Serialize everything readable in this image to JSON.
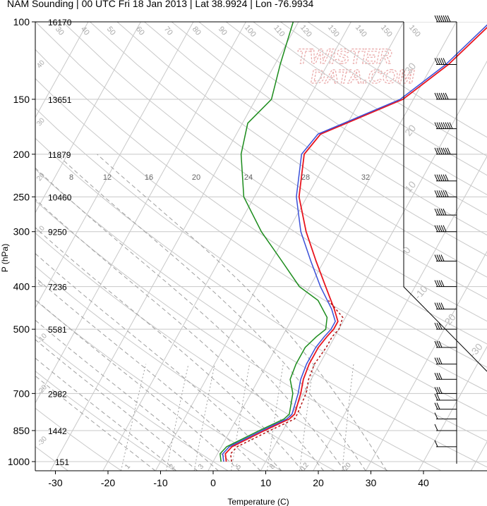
{
  "title": "NAM Sounding | 00 UTC Fri 18 Jan 2013 | Lat 38.9924 | Lon -76.9934",
  "watermark": [
    "TWISTER",
    "DATA.COM"
  ],
  "colors": {
    "temperature": "#e8141e",
    "temperature_alt": "#3a4fd8",
    "dewpoint": "#1c8c1c",
    "dewpoint_dotted": "#b01010",
    "grid": "#c8c8c8",
    "dashed": "#a0a0a0"
  },
  "chart_data": {
    "type": "line",
    "title": "NAM Sounding | 00 UTC Fri 18 Jan 2013 | Lat 38.9924 | Lon -76.9934",
    "xlabel": "Temperature (C)",
    "ylabel": "P (hPa)",
    "x_ticks": [
      "-30",
      "-20",
      "-10",
      "0",
      "10",
      "20",
      "30",
      "40"
    ],
    "y_ticks": [
      "100",
      "150",
      "200",
      "250",
      "300",
      "400",
      "500",
      "700",
      "850",
      "1000"
    ],
    "y_scale": "log",
    "xlim": [
      -35,
      52
    ],
    "ylim": [
      1050,
      100
    ],
    "heights_m": [
      {
        "p": 100,
        "z": "16170"
      },
      {
        "p": 150,
        "z": "13651"
      },
      {
        "p": 200,
        "z": "11879"
      },
      {
        "p": 250,
        "z": "10460"
      },
      {
        "p": 300,
        "z": "9250"
      },
      {
        "p": 400,
        "z": "7236"
      },
      {
        "p": 500,
        "z": "5581"
      },
      {
        "p": 700,
        "z": "2982"
      },
      {
        "p": 850,
        "z": "1442"
      },
      {
        "p": 1000,
        "z": "151"
      }
    ],
    "skew_labels": [
      "30",
      "40",
      "50",
      "60",
      "70",
      "80",
      "90",
      "100",
      "110",
      "120",
      "130",
      "140",
      "150",
      "160"
    ],
    "mixing_ratio_labels": [
      "8",
      "12",
      "16",
      "20",
      "24",
      "28",
      "32"
    ],
    "bottom_labels": [
      "1",
      "2",
      "3",
      "5",
      "8",
      "12",
      "20"
    ],
    "right_labels": [
      "30",
      "20",
      "10",
      "0",
      "-10",
      "-20",
      "-30"
    ],
    "left_labels": [
      "40",
      "30",
      "20",
      "10",
      "0",
      "-10",
      "-20",
      "-30"
    ],
    "series": [
      {
        "kind": "temperature",
        "points": [
          [
            2.5,
            1000
          ],
          [
            1.5,
            960
          ],
          [
            2.0,
            925
          ],
          [
            6.5,
            850
          ],
          [
            10.0,
            800
          ],
          [
            10.5,
            780
          ],
          [
            9.5,
            700
          ],
          [
            8.5,
            650
          ],
          [
            8.0,
            600
          ],
          [
            8.0,
            550
          ],
          [
            8.5,
            520
          ],
          [
            9.0,
            500
          ],
          [
            9.0,
            480
          ],
          [
            7.0,
            450
          ],
          [
            3.0,
            400
          ],
          [
            -1.5,
            350
          ],
          [
            -6.5,
            300
          ],
          [
            -11.5,
            250
          ],
          [
            -15.0,
            200
          ],
          [
            -14.0,
            180
          ],
          [
            -2.0,
            150
          ],
          [
            3.0,
            125
          ],
          [
            7.0,
            100
          ]
        ]
      },
      {
        "kind": "temperature_alt",
        "points": [
          [
            2.0,
            1000
          ],
          [
            1.0,
            960
          ],
          [
            1.5,
            925
          ],
          [
            6.0,
            850
          ],
          [
            9.5,
            800
          ],
          [
            10.0,
            780
          ],
          [
            9.0,
            700
          ],
          [
            8.0,
            650
          ],
          [
            7.5,
            600
          ],
          [
            7.5,
            550
          ],
          [
            8.0,
            520
          ],
          [
            8.5,
            500
          ],
          [
            8.5,
            480
          ],
          [
            6.5,
            450
          ],
          [
            2.0,
            400
          ],
          [
            -2.5,
            350
          ],
          [
            -7.5,
            300
          ],
          [
            -12.0,
            250
          ],
          [
            -15.5,
            200
          ],
          [
            -14.5,
            180
          ],
          [
            -2.5,
            150
          ],
          [
            2.5,
            125
          ],
          [
            6.5,
            100
          ]
        ]
      },
      {
        "kind": "dewpoint",
        "points": [
          [
            1.5,
            1000
          ],
          [
            0.5,
            960
          ],
          [
            1.0,
            925
          ],
          [
            5.5,
            850
          ],
          [
            9.0,
            800
          ],
          [
            9.5,
            780
          ],
          [
            8.0,
            700
          ],
          [
            6.0,
            650
          ],
          [
            5.5,
            600
          ],
          [
            5.5,
            550
          ],
          [
            6.5,
            520
          ],
          [
            7.5,
            500
          ],
          [
            6.5,
            470
          ],
          [
            3.0,
            430
          ],
          [
            -2.0,
            400
          ],
          [
            -8.0,
            350
          ],
          [
            -15.0,
            300
          ],
          [
            -22.0,
            250
          ],
          [
            -27.0,
            200
          ],
          [
            -29.0,
            170
          ],
          [
            -27.0,
            150
          ],
          [
            -29.0,
            125
          ],
          [
            -31.0,
            100
          ]
        ]
      },
      {
        "kind": "dewpoint_dotted",
        "points": [
          [
            3.5,
            1000
          ],
          [
            2.5,
            960
          ],
          [
            3.0,
            925
          ],
          [
            7.5,
            850
          ],
          [
            11.0,
            800
          ],
          [
            11.0,
            780
          ],
          [
            10.5,
            700
          ],
          [
            9.5,
            650
          ],
          [
            9.0,
            600
          ],
          [
            9.5,
            550
          ],
          [
            9.5,
            520
          ],
          [
            10.0,
            500
          ],
          [
            9.5,
            470
          ],
          [
            5.0,
            430
          ]
        ]
      }
    ],
    "wind_barbs": [
      {
        "p": 100,
        "speed_kt": 70
      },
      {
        "p": 125,
        "speed_kt": 45
      },
      {
        "p": 150,
        "speed_kt": 60
      },
      {
        "p": 175,
        "speed_kt": 80
      },
      {
        "p": 200,
        "speed_kt": 70
      },
      {
        "p": 230,
        "speed_kt": 60
      },
      {
        "p": 250,
        "speed_kt": 55
      },
      {
        "p": 275,
        "speed_kt": 50
      },
      {
        "p": 300,
        "speed_kt": 45
      },
      {
        "p": 350,
        "speed_kt": 40
      },
      {
        "p": 400,
        "speed_kt": 35
      },
      {
        "p": 450,
        "speed_kt": 35
      },
      {
        "p": 500,
        "speed_kt": 30
      },
      {
        "p": 550,
        "speed_kt": 30
      },
      {
        "p": 600,
        "speed_kt": 30
      },
      {
        "p": 650,
        "speed_kt": 25
      },
      {
        "p": 700,
        "speed_kt": 25
      },
      {
        "p": 725,
        "speed_kt": 20
      },
      {
        "p": 760,
        "speed_kt": 15
      },
      {
        "p": 800,
        "speed_kt": 10
      },
      {
        "p": 850,
        "speed_kt": 10
      },
      {
        "p": 925,
        "speed_kt": 5
      }
    ]
  }
}
